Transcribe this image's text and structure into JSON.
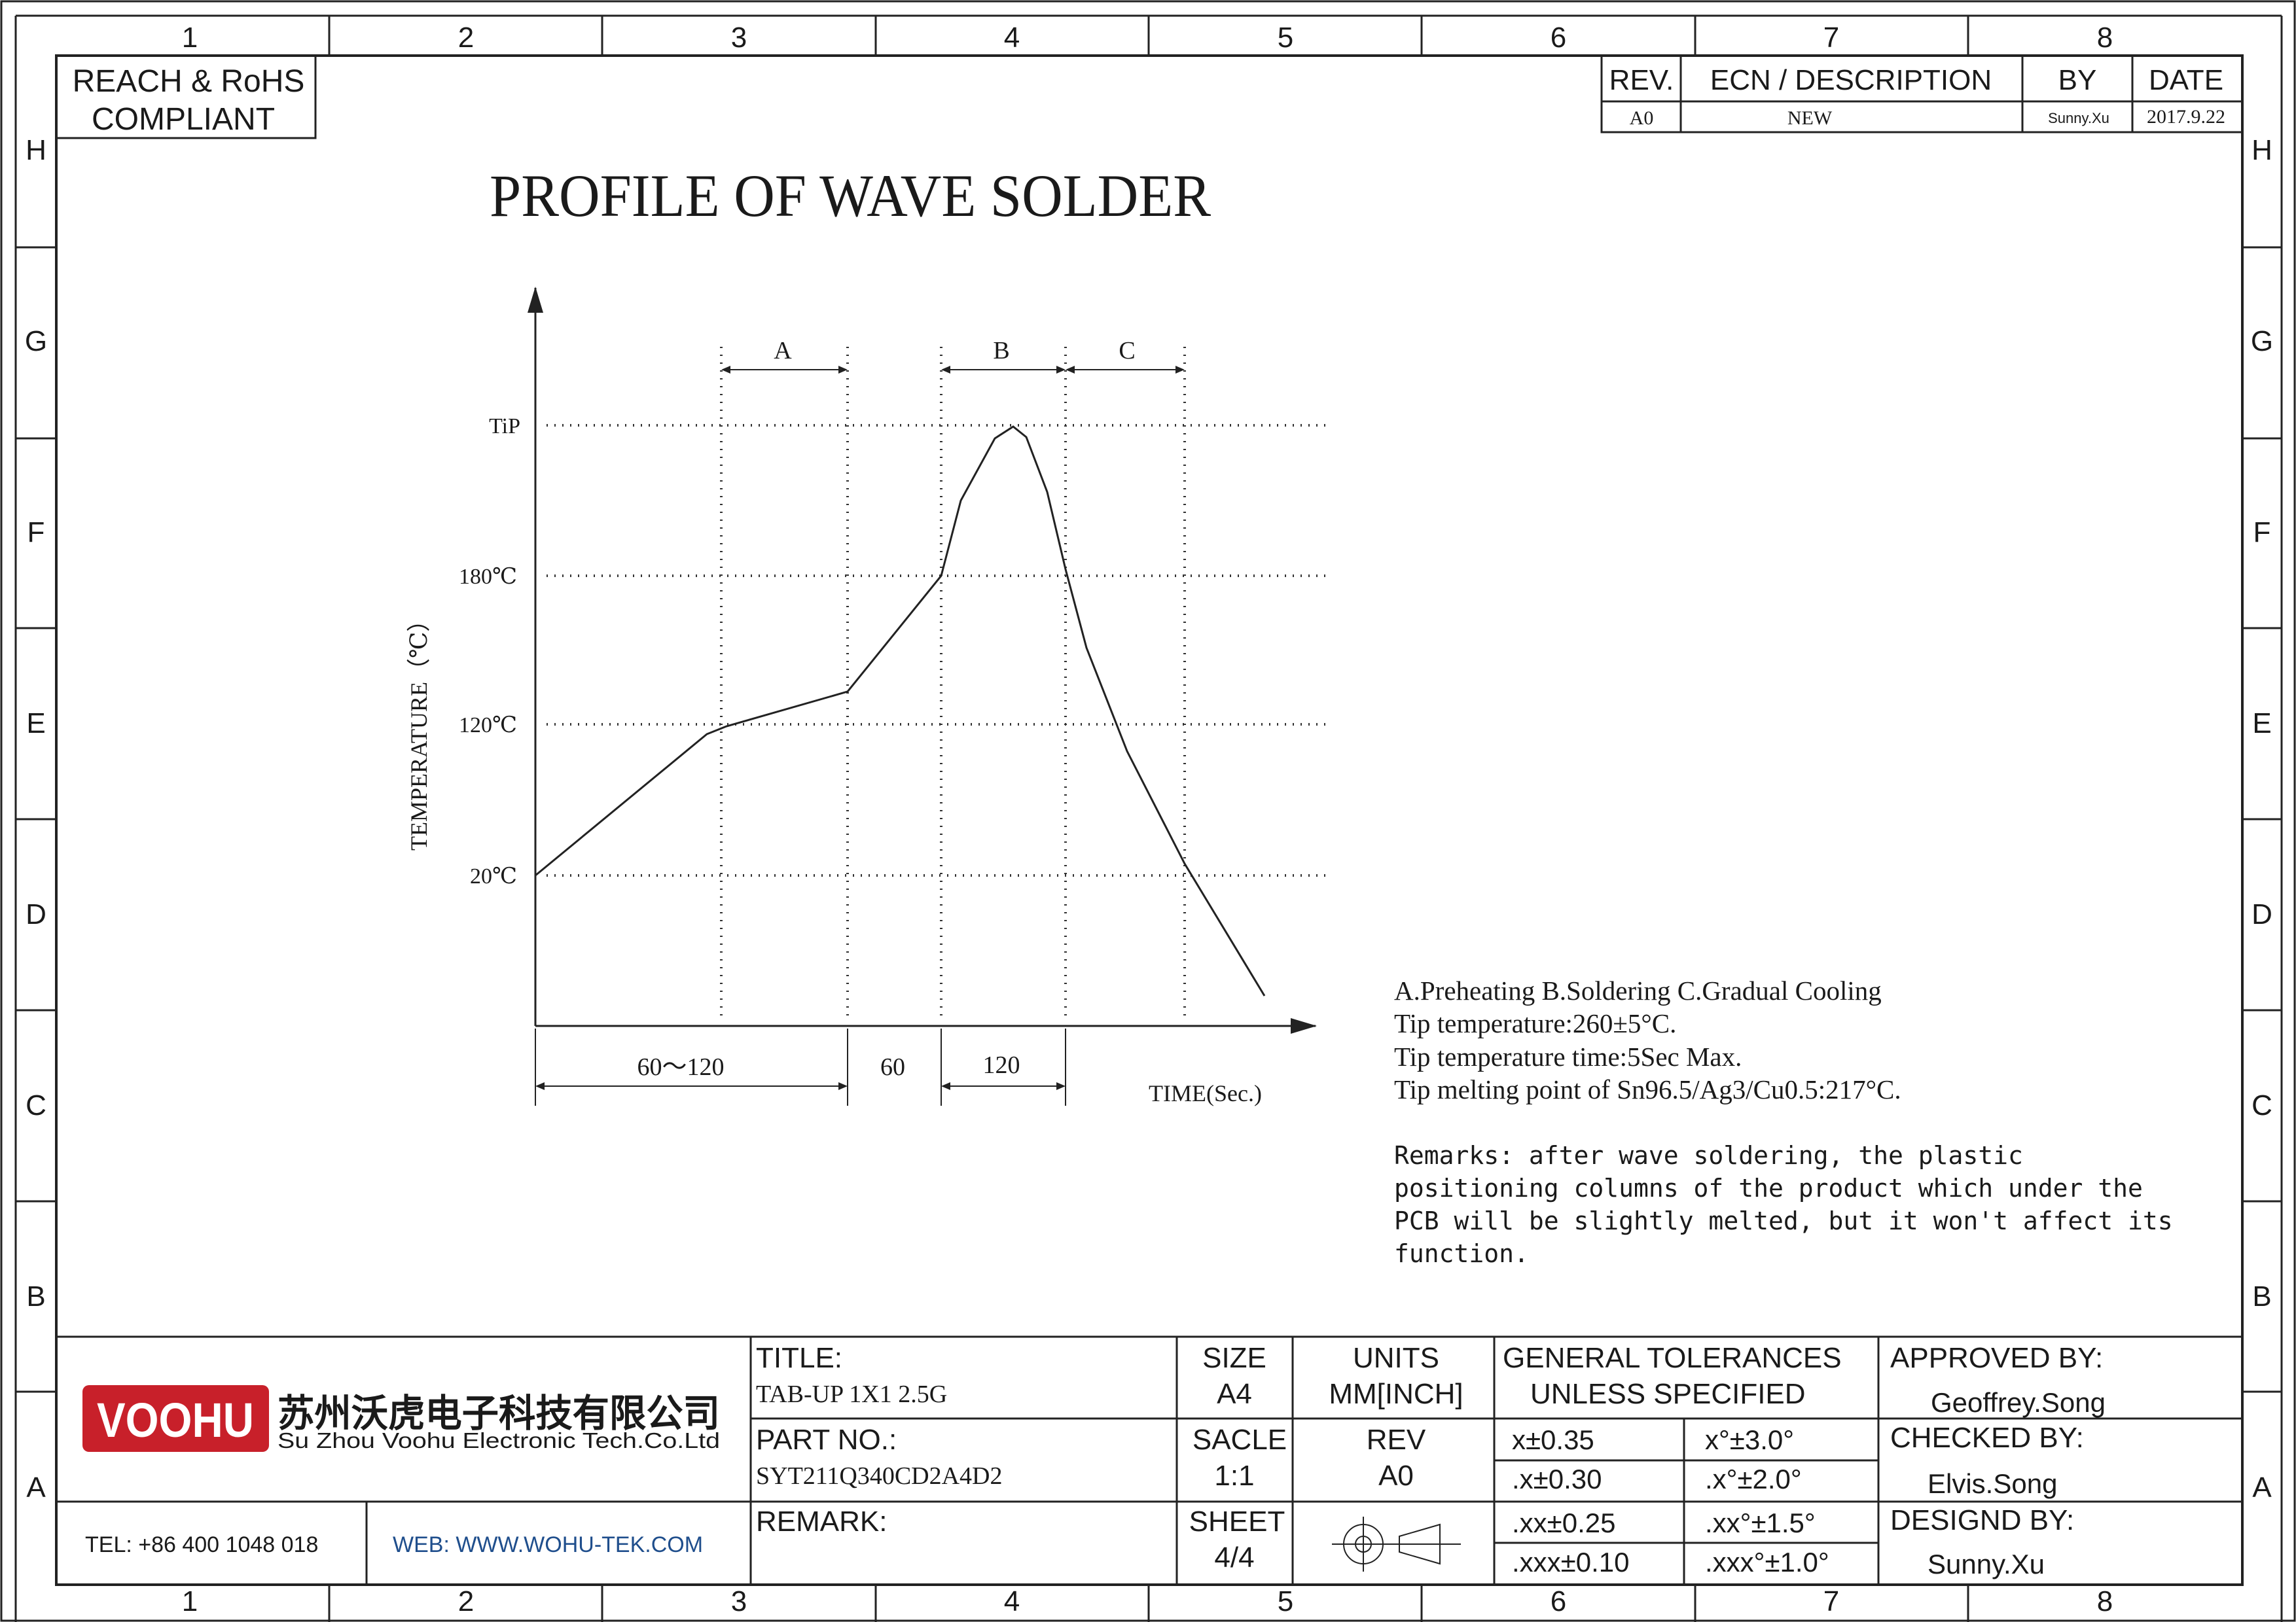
{
  "grid": {
    "columns": [
      "1",
      "2",
      "3",
      "4",
      "5",
      "6",
      "7",
      "8"
    ],
    "rows": [
      "H",
      "G",
      "F",
      "E",
      "D",
      "C",
      "B",
      "A"
    ]
  },
  "compliance": {
    "line1": "REACH & RoHS",
    "line2": "COMPLIANT"
  },
  "revision_block": {
    "headers": {
      "rev": "REV.",
      "desc": "ECN / DESCRIPTION",
      "by": "BY",
      "date": "DATE"
    },
    "row": {
      "rev": "A0",
      "desc": "NEW",
      "by": "Sunny.Xu",
      "date": "2017.9.22"
    }
  },
  "drawing": {
    "title": "PROFILE OF WAVE SOLDER",
    "y_axis_label": "TEMPERATURE（℃）",
    "x_axis_label": "TIME(Sec.)",
    "temp_labels": [
      "TiP",
      "180℃",
      "120℃",
      "20℃"
    ],
    "zone_labels": [
      "A",
      "B",
      "C"
    ],
    "time_spans": [
      "60～120",
      "60",
      "120"
    ]
  },
  "notes": {
    "line1": "A.Preheating  B.Soldering  C.Gradual Cooling",
    "line2": "Tip temperature:260±5°C.",
    "line3": "Tip temperature time:5Sec Max.",
    "line4": "Tip melting point of Sn96.5/Ag3/Cu0.5:217°C."
  },
  "remarks": [
    "Remarks: after wave soldering, the plastic",
    "positioning columns of the product  which under the",
    "PCB will be slightly melted, but it won't affect its",
    "function."
  ],
  "title_block": {
    "logo_text": "VOOHU",
    "company_cn": "苏州沃虎电子科技有限公司",
    "company_en": "Su Zhou Voohu Electronic Tech.Co.Ltd",
    "tel": "TEL: +86 400 1048 018",
    "web": "WEB: WWW.WOHU-TEK.COM",
    "title_label": "TITLE:",
    "title_value": "TAB-UP 1X1 2.5G",
    "part_label": "PART NO.:",
    "part_value": "SYT211Q340CD2A4D2",
    "remark_label": "REMARK:",
    "size_label": "SIZE",
    "size_value": "A4",
    "units_label": "UNITS",
    "units_value": "MM[INCH]",
    "scale_label": "SACLE",
    "scale_value": "1:1",
    "rev_label": "REV",
    "rev_value": "A0",
    "sheet_label": "SHEET",
    "sheet_value": "4/4",
    "tol_title1": "GENERAL TOLERANCES",
    "tol_title2": "UNLESS SPECIFIED",
    "tolerances": [
      [
        "x±0.35",
        "x°±3.0°"
      ],
      [
        ".x±0.30",
        ".x°±2.0°"
      ],
      [
        ".xx±0.25",
        ".xx°±1.5°"
      ],
      [
        ".xxx±0.10",
        ".xxx°±1.0°"
      ]
    ],
    "approved_label": "APPROVED BY:",
    "approved_value": "Geoffrey.Song",
    "checked_label": "CHECKED BY:",
    "checked_value": "Elvis.Song",
    "designed_label": "DESIGND BY:",
    "designed_value": "Sunny.Xu"
  },
  "colors": {
    "logo_red": "#c8202a",
    "text_blue": "#1f4e8c"
  }
}
